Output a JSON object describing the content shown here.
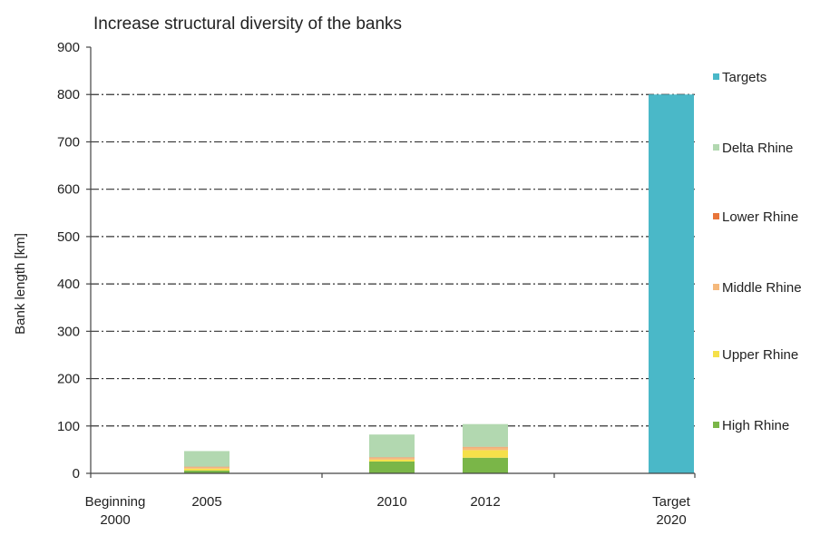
{
  "chart_data": {
    "type": "bar",
    "stacked": true,
    "title": "Increase structural diversity of the banks",
    "ylabel": "Bank length [km]",
    "xlabel": "",
    "ylim": [
      0,
      900
    ],
    "yticks": [
      0,
      100,
      200,
      300,
      400,
      500,
      600,
      700,
      800,
      900
    ],
    "grid": "horizontal dash-dot at 100..800",
    "legend_position": "right",
    "categories": [
      {
        "label": [
          "Beginning",
          "2000"
        ]
      },
      {
        "label": [
          "2005"
        ]
      },
      {
        "label": [
          "2010"
        ]
      },
      {
        "label": [
          "2012"
        ]
      },
      {
        "label": [
          "Target",
          "2020"
        ]
      }
    ],
    "series": [
      {
        "name": "High Rhine",
        "color": "#7ab648",
        "values": [
          0,
          6,
          25,
          33,
          0
        ]
      },
      {
        "name": "Upper Rhine",
        "color": "#f5e04a",
        "values": [
          0,
          4,
          4,
          16,
          0
        ]
      },
      {
        "name": "Middle Rhine",
        "color": "#f5b97c",
        "values": [
          0,
          3,
          4,
          6,
          0
        ]
      },
      {
        "name": "Lower Rhine",
        "color": "#e8753a",
        "values": [
          0,
          1,
          1,
          1,
          0
        ]
      },
      {
        "name": "Delta Rhine",
        "color": "#b2d8b0",
        "values": [
          0,
          33,
          48,
          48,
          0
        ]
      },
      {
        "name": "Targets",
        "color": "#4ab8c8",
        "values": [
          0,
          0,
          0,
          0,
          800
        ]
      }
    ],
    "legend_order": [
      "Targets",
      "Delta Rhine",
      "Lower Rhine",
      "Middle Rhine",
      "Upper Rhine",
      "High Rhine"
    ]
  }
}
